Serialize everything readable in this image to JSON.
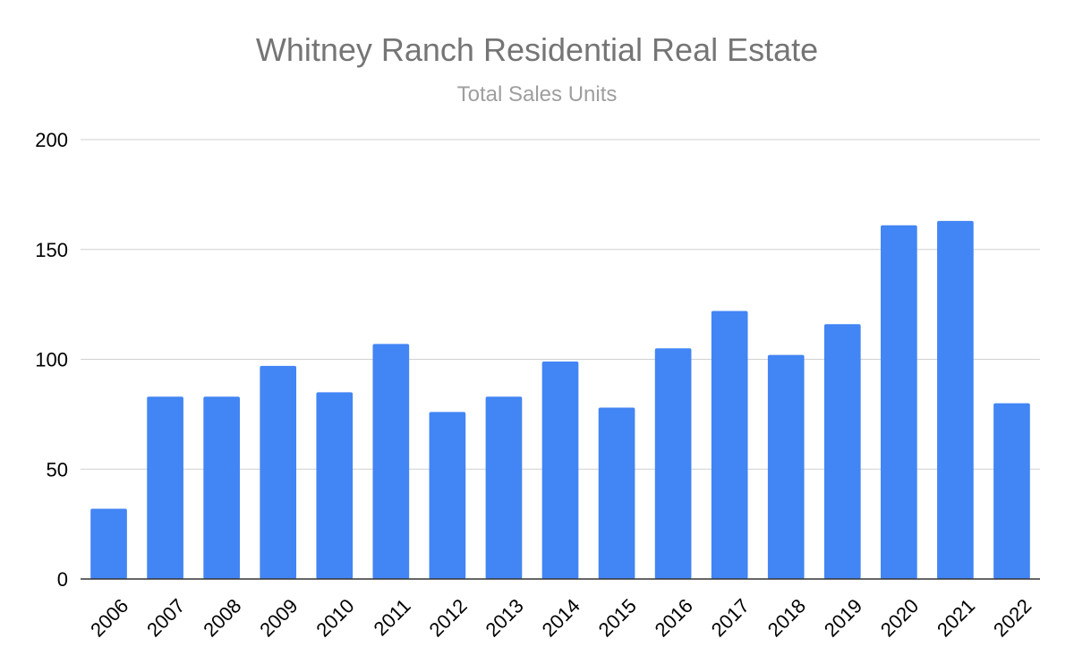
{
  "chart_data": {
    "type": "bar",
    "title": "Whitney Ranch Residential Real Estate",
    "subtitle": "Total Sales Units",
    "xlabel": "",
    "ylabel": "",
    "categories": [
      "2006",
      "2007",
      "2008",
      "2009",
      "2010",
      "2011",
      "2012",
      "2013",
      "2014",
      "2015",
      "2016",
      "2017",
      "2018",
      "2019",
      "2020",
      "2021",
      "2022"
    ],
    "values": [
      32,
      83,
      83,
      97,
      85,
      107,
      76,
      83,
      99,
      78,
      105,
      122,
      102,
      116,
      161,
      163,
      80
    ],
    "ylim": [
      0,
      200
    ],
    "yticks": [
      "0",
      "50",
      "100",
      "150",
      "200"
    ],
    "grid": true,
    "legend": "none",
    "bar_color": "#4285f4"
  }
}
